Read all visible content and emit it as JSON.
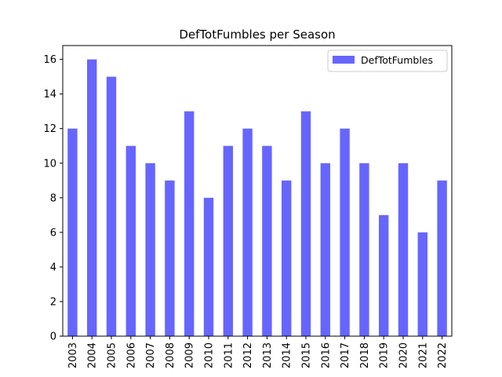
{
  "chart_data": {
    "type": "bar",
    "title": "DefTotFumbles per Season",
    "xlabel": "",
    "ylabel": "",
    "categories": [
      "2003",
      "2004",
      "2005",
      "2006",
      "2007",
      "2008",
      "2009",
      "2010",
      "2011",
      "2012",
      "2013",
      "2014",
      "2015",
      "2016",
      "2017",
      "2018",
      "2019",
      "2020",
      "2021",
      "2022"
    ],
    "series": [
      {
        "name": "DefTotFumbles",
        "values": [
          12,
          16,
          15,
          11,
          10,
          9,
          13,
          8,
          11,
          12,
          11,
          9,
          13,
          10,
          12,
          10,
          7,
          10,
          6,
          9
        ],
        "color": "#6666ff"
      }
    ],
    "ylim": [
      0,
      16.8
    ],
    "yticks": [
      0,
      2,
      4,
      6,
      8,
      10,
      12,
      14,
      16
    ],
    "grid": false,
    "legend": "top-right"
  }
}
